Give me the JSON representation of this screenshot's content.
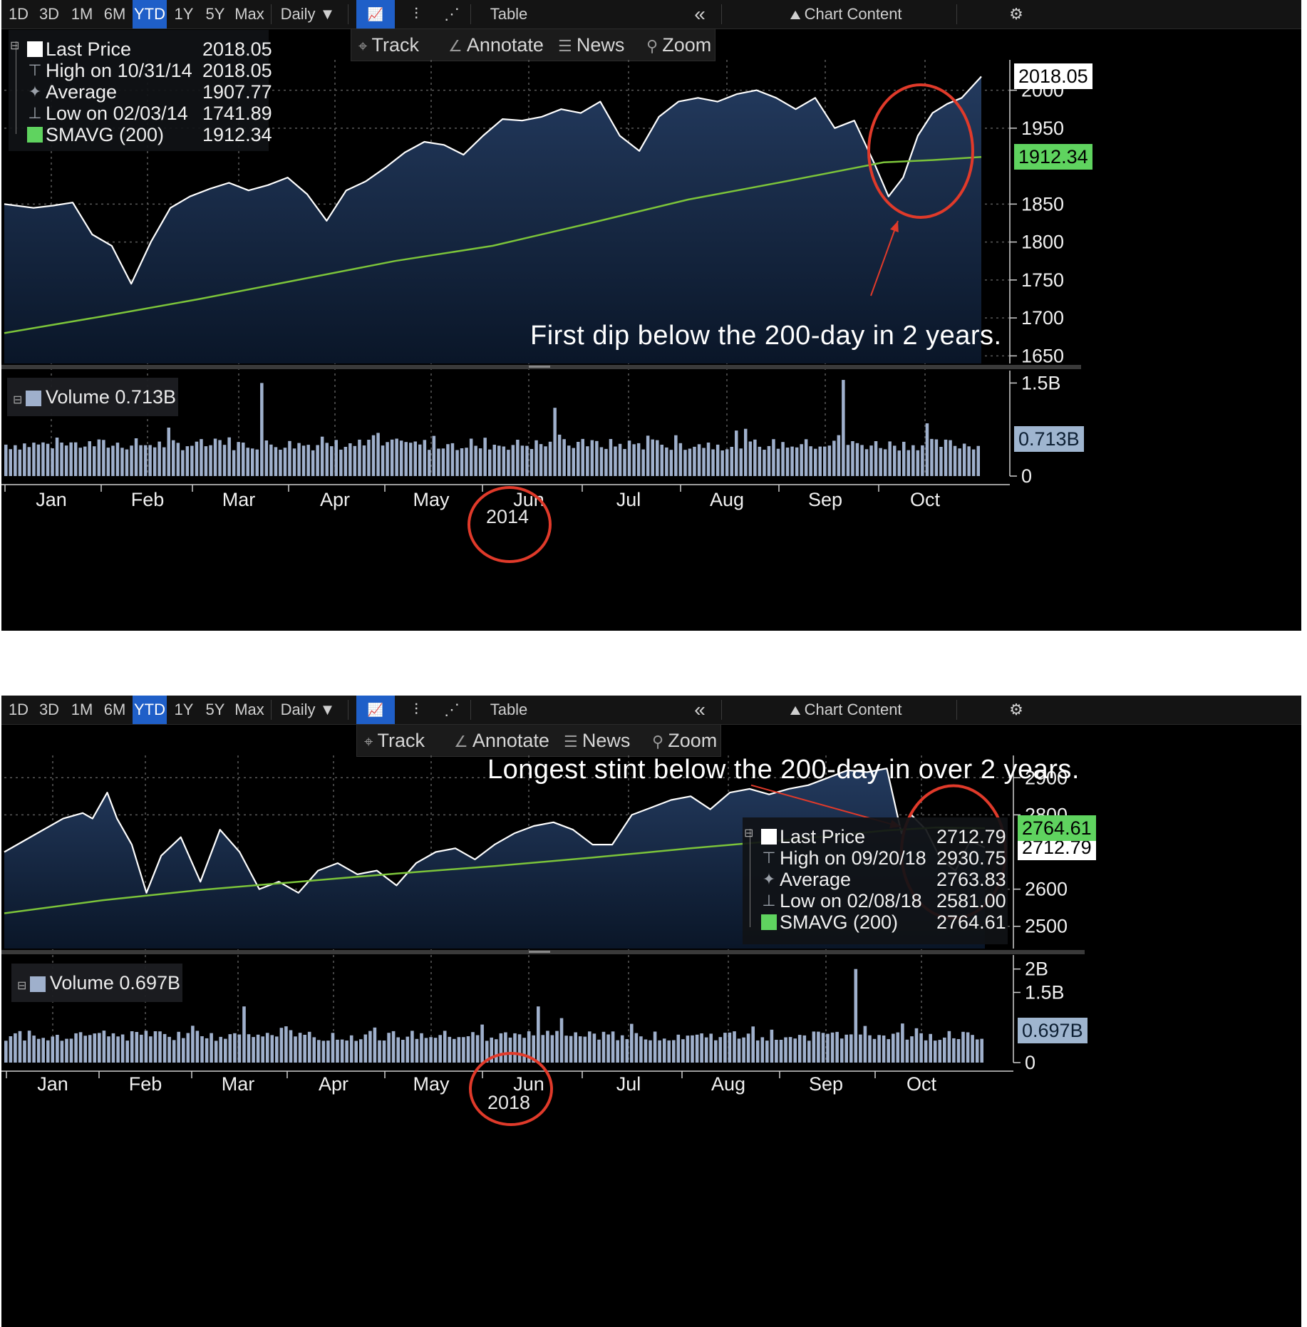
{
  "toolbar": {
    "ranges": [
      "1D",
      "3D",
      "1M",
      "6M",
      "YTD",
      "1Y",
      "5Y",
      "Max"
    ],
    "active_range": "YTD",
    "interval": "Daily ▼",
    "table_label": "Table",
    "collapse_label": "«",
    "chart_content_label": "Chart Content",
    "settings_icon": "gear-icon",
    "line_chart_icon": "line-chart-icon",
    "bar_chart_icon": "ohlc-bar-icon",
    "dots_icon": "dots-icon"
  },
  "subtoolbar": {
    "track": "Track",
    "annotate": "Annotate",
    "news": "News",
    "zoom": "Zoom"
  },
  "colors": {
    "price_line": "#ffffff",
    "area_top": "#233a5e",
    "area_bottom": "#0a1628",
    "smavg": "#7cc43a",
    "volume_bar": "#9fb0cc",
    "annotation_red": "#e03a2a",
    "grid": "#5a5a5a"
  },
  "panels": [
    {
      "id": "2014",
      "annotation": "First dip below the 200-day in 2 years.",
      "legend": {
        "last_price_label": "Last Price",
        "last_price_value": "2018.05",
        "high_label": "High on 10/31/14",
        "high_value": "2018.05",
        "average_label": "Average",
        "average_value": "1907.77",
        "low_label": "Low on 02/03/14",
        "low_value": "1741.89",
        "smavg_label": "SMAVG (200)",
        "smavg_value": "1912.34"
      },
      "volume_legend": "Volume 0.713B",
      "price_tags": {
        "last": "2018.05",
        "smavg": "1912.34"
      },
      "volume_tag": "0.713B",
      "year_label": "2014"
    },
    {
      "id": "2018",
      "annotation": "Longest stint below the 200-day in over 2 years.",
      "legend": {
        "last_price_label": "Last Price",
        "last_price_value": "2712.79",
        "high_label": "High on 09/20/18",
        "high_value": "2930.75",
        "average_label": "Average",
        "average_value": "2763.83",
        "low_label": "Low on 02/08/18",
        "low_value": "2581.00",
        "smavg_label": "SMAVG (200)",
        "smavg_value": "2764.61"
      },
      "volume_legend": "Volume 0.697B",
      "price_tags": {
        "last": "2712.79",
        "smavg": "2764.61"
      },
      "volume_tag": "0.697B",
      "year_label": "2018"
    }
  ],
  "chart_data": [
    {
      "type": "area",
      "title": "",
      "year": "2014",
      "months": [
        "Jan",
        "Feb",
        "Mar",
        "Apr",
        "May",
        "Jun",
        "Jul",
        "Aug",
        "Sep",
        "Oct"
      ],
      "y_ticks": [
        1650,
        1700,
        1750,
        1800,
        1850,
        1950,
        2000
      ],
      "ylim": [
        1640,
        2040
      ],
      "volume_ticks": [
        "0",
        "1.5B"
      ],
      "volume_ylim": [
        0,
        1.7
      ],
      "series": [
        {
          "name": "Last Price",
          "x": [
            0,
            0.03,
            0.05,
            0.07,
            0.09,
            0.11,
            0.13,
            0.15,
            0.17,
            0.19,
            0.21,
            0.23,
            0.25,
            0.27,
            0.29,
            0.31,
            0.33,
            0.35,
            0.37,
            0.39,
            0.41,
            0.43,
            0.45,
            0.47,
            0.49,
            0.51,
            0.53,
            0.55,
            0.57,
            0.59,
            0.61,
            0.63,
            0.65,
            0.67,
            0.69,
            0.71,
            0.73,
            0.75,
            0.77,
            0.79,
            0.81,
            0.83,
            0.85,
            0.87,
            0.89,
            0.905,
            0.92,
            0.935,
            0.95,
            0.965,
            0.98,
            1.0
          ],
          "values": [
            1850,
            1845,
            1848,
            1852,
            1810,
            1795,
            1745,
            1800,
            1845,
            1860,
            1870,
            1878,
            1868,
            1875,
            1885,
            1863,
            1828,
            1868,
            1880,
            1898,
            1918,
            1932,
            1928,
            1915,
            1940,
            1962,
            1960,
            1965,
            1975,
            1970,
            1985,
            1940,
            1920,
            1965,
            1985,
            1990,
            1985,
            1995,
            2000,
            1990,
            1975,
            1990,
            1950,
            1960,
            1905,
            1860,
            1885,
            1940,
            1970,
            1982,
            1990,
            2018
          ]
        },
        {
          "name": "SMAVG (200)",
          "x": [
            0,
            0.1,
            0.2,
            0.3,
            0.4,
            0.5,
            0.6,
            0.7,
            0.8,
            0.9,
            0.95,
            1.0
          ],
          "values": [
            1680,
            1702,
            1725,
            1750,
            1775,
            1795,
            1825,
            1856,
            1880,
            1905,
            1908,
            1912
          ]
        }
      ],
      "volume_baseline": 0.55,
      "volume_spikes": [
        {
          "x": 0.262,
          "value": 1.5
        },
        {
          "x": 0.561,
          "value": 1.1
        },
        {
          "x": 0.857,
          "value": 1.55
        },
        {
          "x": 0.945,
          "value": 0.85
        }
      ]
    },
    {
      "type": "area",
      "title": "",
      "year": "2018",
      "months": [
        "Jan",
        "Feb",
        "Mar",
        "Apr",
        "May",
        "Jun",
        "Jul",
        "Aug",
        "Sep",
        "Oct"
      ],
      "y_ticks": [
        2500,
        2600,
        2800,
        2900
      ],
      "ylim": [
        2440,
        2960
      ],
      "volume_ticks": [
        "0",
        "1.5B",
        "2B"
      ],
      "volume_ylim": [
        0,
        2.3
      ],
      "series": [
        {
          "name": "Last Price",
          "x": [
            0,
            0.03,
            0.06,
            0.08,
            0.09,
            0.105,
            0.115,
            0.13,
            0.145,
            0.16,
            0.18,
            0.2,
            0.22,
            0.24,
            0.26,
            0.28,
            0.3,
            0.32,
            0.34,
            0.36,
            0.38,
            0.4,
            0.42,
            0.44,
            0.46,
            0.48,
            0.5,
            0.52,
            0.54,
            0.56,
            0.58,
            0.6,
            0.62,
            0.64,
            0.66,
            0.68,
            0.7,
            0.72,
            0.74,
            0.76,
            0.78,
            0.8,
            0.82,
            0.84,
            0.86,
            0.88,
            0.9,
            0.915,
            0.925,
            0.94,
            0.955,
            0.97,
            0.985,
            1.0
          ],
          "values": [
            2700,
            2745,
            2790,
            2805,
            2790,
            2860,
            2790,
            2720,
            2590,
            2690,
            2740,
            2620,
            2760,
            2700,
            2600,
            2620,
            2590,
            2650,
            2670,
            2640,
            2650,
            2610,
            2670,
            2700,
            2710,
            2680,
            2720,
            2750,
            2770,
            2780,
            2760,
            2720,
            2720,
            2800,
            2820,
            2840,
            2850,
            2815,
            2860,
            2870,
            2855,
            2870,
            2880,
            2900,
            2920,
            2915,
            2925,
            2750,
            2800,
            2760,
            2680,
            2650,
            2730,
            2712
          ]
        },
        {
          "name": "SMAVG (200)",
          "x": [
            0,
            0.1,
            0.2,
            0.3,
            0.4,
            0.5,
            0.6,
            0.7,
            0.8,
            0.9,
            0.95,
            1.0
          ],
          "values": [
            2535,
            2570,
            2598,
            2620,
            2642,
            2662,
            2685,
            2710,
            2733,
            2758,
            2766,
            2764
          ]
        }
      ],
      "volume_baseline": 0.62,
      "volume_spikes": [
        {
          "x": 0.245,
          "value": 1.2
        },
        {
          "x": 0.543,
          "value": 1.2
        },
        {
          "x": 0.865,
          "value": 2.0
        },
        {
          "x": 0.565,
          "value": 0.95
        }
      ]
    }
  ]
}
